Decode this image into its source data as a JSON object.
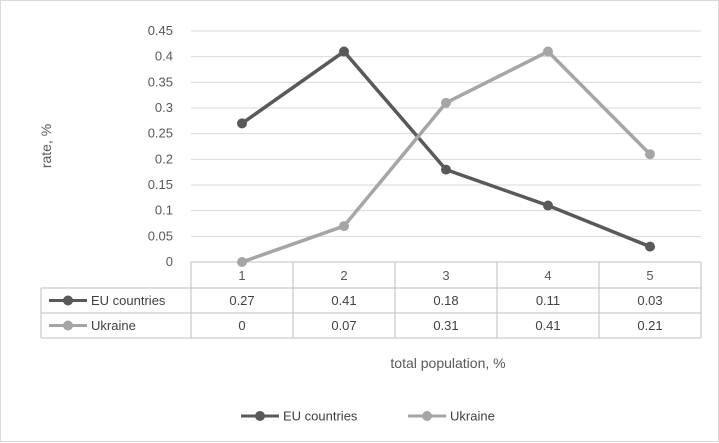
{
  "chart_data": {
    "type": "line",
    "categories": [
      "1",
      "2",
      "3",
      "4",
      "5"
    ],
    "series": [
      {
        "name": "EU countries",
        "values": [
          0.27,
          0.41,
          0.18,
          0.11,
          0.03
        ],
        "color": "#595959"
      },
      {
        "name": "Ukraine",
        "values": [
          0,
          0.07,
          0.31,
          0.41,
          0.21
        ],
        "color": "#a5a5a5"
      }
    ],
    "ylim": [
      0,
      0.45
    ],
    "yticks": [
      "0",
      "0.05",
      "0.1",
      "0.15",
      "0.2",
      "0.25",
      "0.3",
      "0.35",
      "0.4",
      "0.45"
    ],
    "xlabel": "total population, %",
    "ylabel": "rate, %",
    "grid": true,
    "legend_position": "bottom",
    "data_table": true
  }
}
